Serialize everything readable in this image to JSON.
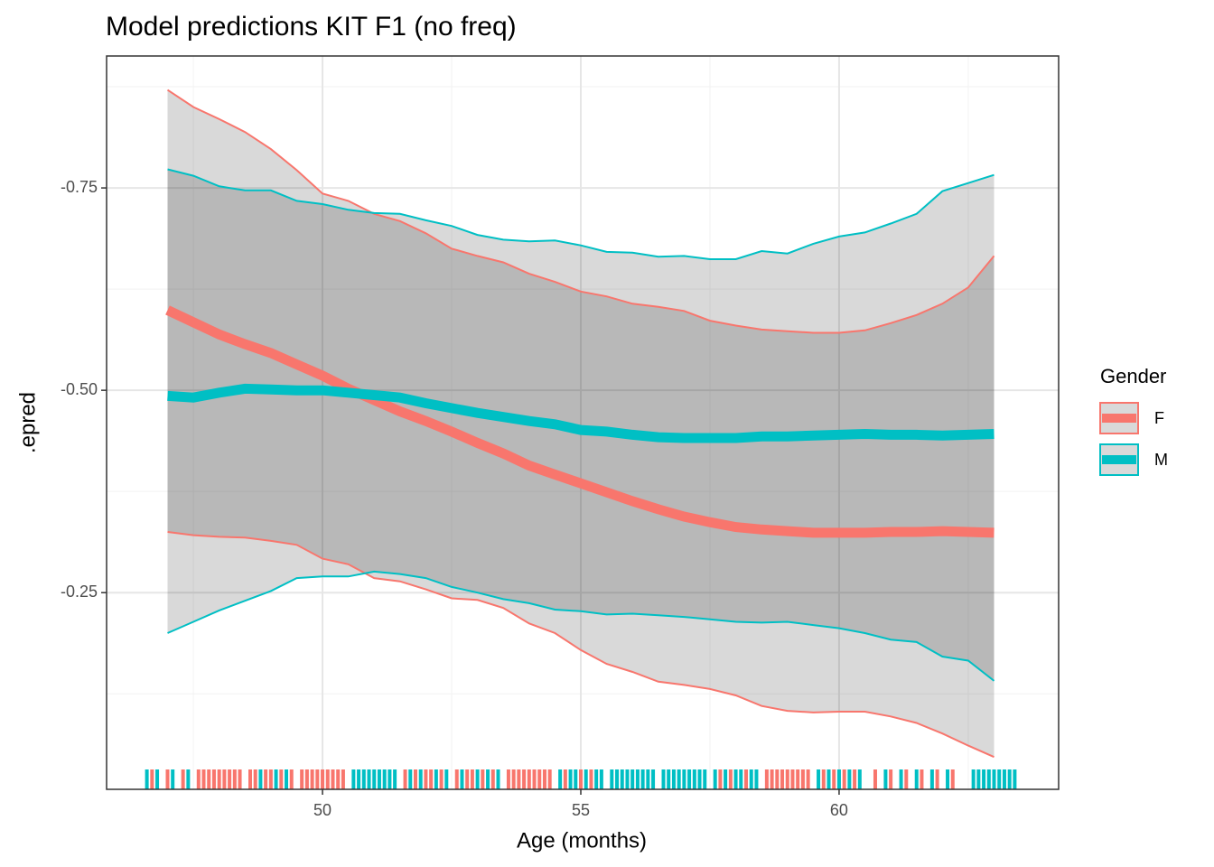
{
  "chart_data": {
    "type": "line",
    "title": "Model predictions KIT F1 (no freq)",
    "x_label": "Age (months)",
    "y_label": ".epred",
    "x": [
      47,
      47.5,
      48,
      48.5,
      49,
      49.5,
      50,
      50.5,
      51,
      51.5,
      52,
      52.5,
      53,
      53.5,
      54,
      54.5,
      55,
      55.5,
      56,
      56.5,
      57,
      57.5,
      58,
      58.5,
      59,
      59.5,
      60,
      60.5,
      61,
      61.5,
      62,
      62.5,
      63
    ],
    "series": [
      {
        "name": "F",
        "color": "#F8766D",
        "values": [
          -0.599,
          -0.584,
          -0.569,
          -0.557,
          -0.546,
          -0.532,
          -0.518,
          -0.502,
          -0.488,
          -0.474,
          -0.462,
          -0.449,
          -0.435,
          -0.422,
          -0.407,
          -0.396,
          -0.385,
          -0.374,
          -0.363,
          -0.353,
          -0.344,
          -0.337,
          -0.331,
          -0.328,
          -0.326,
          -0.324,
          -0.324,
          -0.324,
          -0.325,
          -0.325,
          -0.326,
          -0.325,
          -0.324
        ],
        "ci_low": [
          -0.871,
          -0.85,
          -0.835,
          -0.819,
          -0.798,
          -0.772,
          -0.743,
          -0.734,
          -0.718,
          -0.709,
          -0.694,
          -0.675,
          -0.666,
          -0.658,
          -0.644,
          -0.634,
          -0.622,
          -0.616,
          -0.607,
          -0.603,
          -0.598,
          -0.586,
          -0.58,
          -0.575,
          -0.573,
          -0.571,
          -0.571,
          -0.574,
          -0.583,
          -0.593,
          -0.607,
          -0.627,
          -0.666
        ],
        "ci_high": [
          -0.325,
          -0.321,
          -0.319,
          -0.318,
          -0.314,
          -0.309,
          -0.292,
          -0.285,
          -0.268,
          -0.264,
          -0.254,
          -0.243,
          -0.241,
          -0.231,
          -0.212,
          -0.2,
          -0.179,
          -0.162,
          -0.152,
          -0.14,
          -0.136,
          -0.131,
          -0.123,
          -0.11,
          -0.104,
          -0.102,
          -0.103,
          -0.103,
          -0.097,
          -0.089,
          -0.076,
          -0.061,
          -0.047
        ],
        "rug": [
          46.7,
          47.0,
          47.3,
          47.6,
          47.7,
          47.8,
          47.9,
          48.0,
          48.1,
          48.2,
          48.3,
          48.4,
          48.6,
          48.7,
          48.9,
          49.0,
          49.2,
          49.4,
          49.6,
          49.7,
          49.8,
          49.9,
          50.0,
          50.1,
          50.2,
          50.3,
          50.4,
          51.6,
          51.8,
          52.0,
          52.1,
          52.3,
          52.6,
          52.8,
          52.9,
          53.1,
          53.3,
          53.6,
          53.7,
          53.8,
          53.9,
          54.0,
          54.1,
          54.2,
          54.3,
          54.4,
          54.7,
          55.0,
          55.2,
          57.7,
          57.9,
          58.2,
          58.6,
          58.7,
          58.8,
          58.9,
          59.0,
          59.1,
          59.2,
          59.3,
          59.4,
          59.7,
          59.9,
          60.1,
          60.3,
          60.7,
          61.0,
          61.3,
          61.6,
          61.9,
          62.2
        ]
      },
      {
        "name": "M",
        "color": "#00BFC4",
        "values": [
          -0.493,
          -0.491,
          -0.497,
          -0.502,
          -0.501,
          -0.5,
          -0.5,
          -0.497,
          -0.494,
          -0.491,
          -0.484,
          -0.478,
          -0.472,
          -0.467,
          -0.462,
          -0.458,
          -0.451,
          -0.449,
          -0.445,
          -0.442,
          -0.441,
          -0.441,
          -0.441,
          -0.443,
          -0.443,
          -0.444,
          -0.445,
          -0.446,
          -0.445,
          -0.445,
          -0.444,
          -0.445,
          -0.446
        ],
        "ci_low": [
          -0.773,
          -0.765,
          -0.752,
          -0.747,
          -0.747,
          -0.734,
          -0.73,
          -0.723,
          -0.719,
          -0.718,
          -0.71,
          -0.703,
          -0.692,
          -0.686,
          -0.684,
          -0.685,
          -0.679,
          -0.671,
          -0.67,
          -0.665,
          -0.666,
          -0.662,
          -0.662,
          -0.672,
          -0.669,
          -0.681,
          -0.69,
          -0.695,
          -0.706,
          -0.718,
          -0.746,
          -0.756,
          -0.766
        ],
        "ci_high": [
          -0.2,
          -0.214,
          -0.228,
          -0.24,
          -0.252,
          -0.268,
          -0.27,
          -0.27,
          -0.276,
          -0.273,
          -0.268,
          -0.257,
          -0.25,
          -0.242,
          -0.237,
          -0.229,
          -0.227,
          -0.223,
          -0.224,
          -0.222,
          -0.22,
          -0.217,
          -0.214,
          -0.213,
          -0.214,
          -0.21,
          -0.206,
          -0.2,
          -0.192,
          -0.189,
          -0.171,
          -0.166,
          -0.141
        ],
        "rug": [
          46.6,
          46.8,
          47.1,
          47.4,
          48.8,
          49.1,
          49.3,
          50.6,
          50.7,
          50.8,
          50.9,
          51.0,
          51.1,
          51.2,
          51.3,
          51.4,
          51.7,
          51.9,
          52.2,
          52.4,
          52.7,
          53.0,
          53.2,
          53.4,
          54.6,
          54.8,
          54.9,
          55.1,
          55.3,
          55.4,
          55.6,
          55.7,
          55.8,
          55.9,
          56.0,
          56.1,
          56.2,
          56.3,
          56.4,
          56.6,
          56.7,
          56.8,
          56.9,
          57.0,
          57.1,
          57.2,
          57.3,
          57.4,
          57.6,
          57.8,
          58.0,
          58.1,
          58.3,
          58.4,
          59.6,
          59.8,
          60.0,
          60.2,
          60.4,
          60.9,
          61.2,
          61.5,
          61.8,
          62.1,
          62.6,
          62.7,
          62.8,
          62.9,
          63.0,
          63.1,
          63.2,
          63.3,
          63.4
        ]
      }
    ],
    "xlim": [
      45.82,
      64.25
    ],
    "ylim": [
      -0.007,
      -0.913
    ],
    "xticks": [
      50,
      55,
      60
    ],
    "yticks": [
      -0.75,
      {
        "value": -0.5,
        "label": "-0.50"
      },
      -0.25
    ],
    "minor_xticks": [
      47.5,
      52.5,
      57.5,
      62.5
    ],
    "minor_yticks": [
      -0.875,
      -0.625,
      -0.375,
      -0.125
    ],
    "grid": true,
    "legend_title": "Gender",
    "legend_position": "right"
  }
}
